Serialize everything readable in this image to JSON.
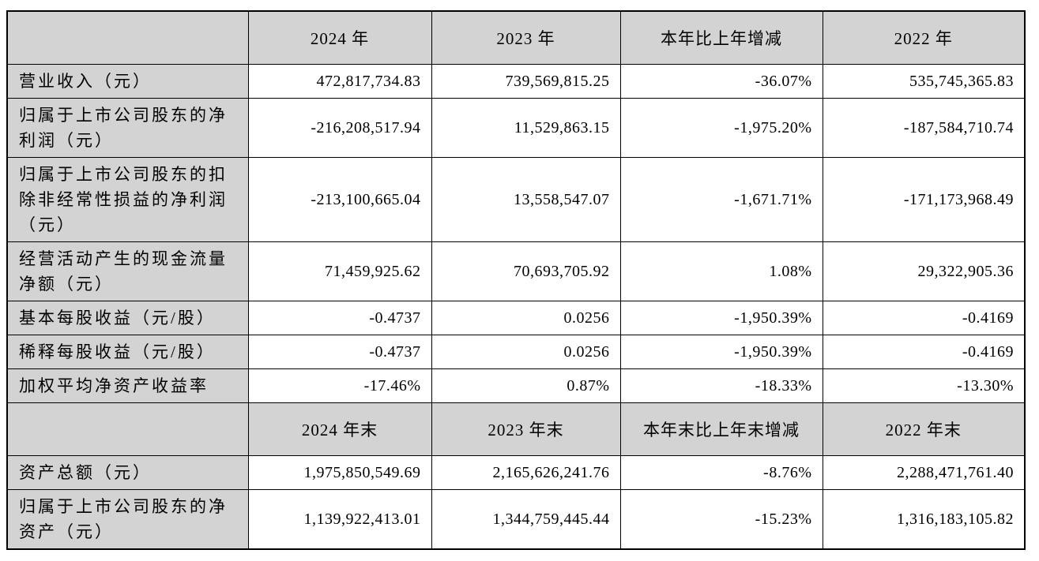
{
  "colors": {
    "header_bg": "#d3d3d3",
    "label_bg": "#d3d3d3",
    "cell_bg": "#ffffff",
    "border": "#000000",
    "text": "#000000"
  },
  "table": {
    "sections": [
      {
        "header": [
          "",
          "2024 年",
          "2023 年",
          "本年比上年增减",
          "2022 年"
        ],
        "rows": [
          {
            "label": "营业收入（元）",
            "values": [
              "472,817,734.83",
              "739,569,815.25",
              "-36.07%",
              "535,745,365.83"
            ]
          },
          {
            "label": "归属于上市公司股东的净利润（元）",
            "values": [
              "-216,208,517.94",
              "11,529,863.15",
              "-1,975.20%",
              "-187,584,710.74"
            ]
          },
          {
            "label": "归属于上市公司股东的扣除非经常性损益的净利润（元）",
            "values": [
              "-213,100,665.04",
              "13,558,547.07",
              "-1,671.71%",
              "-171,173,968.49"
            ]
          },
          {
            "label": "经营活动产生的现金流量净额（元）",
            "values": [
              "71,459,925.62",
              "70,693,705.92",
              "1.08%",
              "29,322,905.36"
            ]
          },
          {
            "label": "基本每股收益（元/股）",
            "values": [
              "-0.4737",
              "0.0256",
              "-1,950.39%",
              "-0.4169"
            ]
          },
          {
            "label": "稀释每股收益（元/股）",
            "values": [
              "-0.4737",
              "0.0256",
              "-1,950.39%",
              "-0.4169"
            ]
          },
          {
            "label": "加权平均净资产收益率",
            "values": [
              "-17.46%",
              "0.87%",
              "-18.33%",
              "-13.30%"
            ]
          }
        ]
      },
      {
        "header": [
          "",
          "2024 年末",
          "2023 年末",
          "本年末比上年末增减",
          "2022 年末"
        ],
        "rows": [
          {
            "label": "资产总额（元）",
            "values": [
              "1,975,850,549.69",
              "2,165,626,241.76",
              "-8.76%",
              "2,288,471,761.40"
            ]
          },
          {
            "label": "归属于上市公司股东的净资产（元）",
            "values": [
              "1,139,922,413.01",
              "1,344,759,445.44",
              "-15.23%",
              "1,316,183,105.82"
            ]
          }
        ]
      }
    ]
  }
}
